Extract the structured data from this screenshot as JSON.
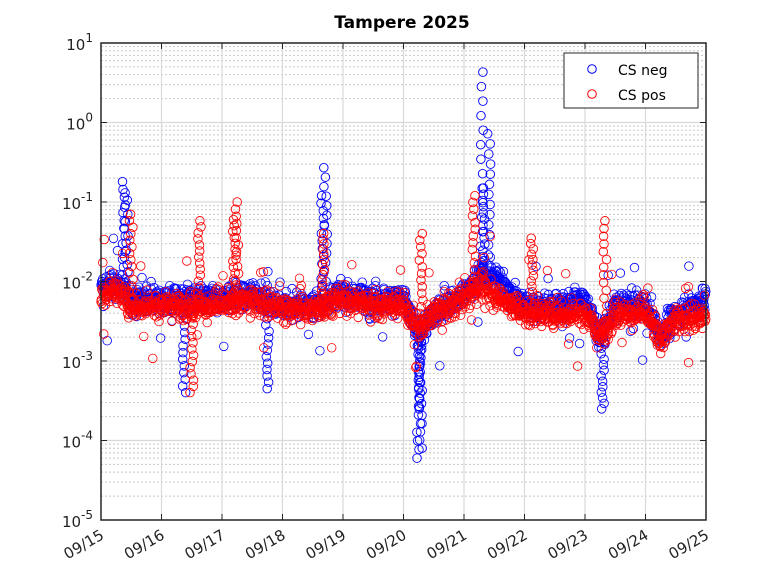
{
  "chart_data": {
    "type": "scatter",
    "title": "Tampere 2025",
    "xlabel": "",
    "ylabel": "",
    "y_scale": "log",
    "ylim": [
      1e-05,
      10
    ],
    "y_ticks": [
      {
        "value": 1e-05,
        "base": "10",
        "exp": "-5"
      },
      {
        "value": 0.0001,
        "base": "10",
        "exp": "-4"
      },
      {
        "value": 0.001,
        "base": "10",
        "exp": "-3"
      },
      {
        "value": 0.01,
        "base": "10",
        "exp": "-2"
      },
      {
        "value": 0.1,
        "base": "10",
        "exp": "-1"
      },
      {
        "value": 1,
        "base": "10",
        "exp": "0"
      },
      {
        "value": 10,
        "base": "10",
        "exp": "1"
      }
    ],
    "x_ticks": [
      "09/15",
      "09/16",
      "09/17",
      "09/18",
      "09/19",
      "09/20",
      "09/21",
      "09/22",
      "09/23",
      "09/24",
      "09/25"
    ],
    "xlim": [
      "2025-09-15",
      "2025-09-25"
    ],
    "grid": true,
    "minor_grid": true,
    "legend_position": "top-right",
    "marker": "open-circle",
    "series": [
      {
        "name": "CS neg",
        "color": "#0000ff",
        "baseline_x": [
          "2025-09-15 00:00",
          "2025-09-15 06:00",
          "2025-09-15 12:00",
          "2025-09-16 00:00",
          "2025-09-16 12:00",
          "2025-09-17 00:00",
          "2025-09-17 12:00",
          "2025-09-18 00:00",
          "2025-09-18 12:00",
          "2025-09-19 00:00",
          "2025-09-19 12:00",
          "2025-09-20 00:00",
          "2025-09-20 06:00",
          "2025-09-20 12:00",
          "2025-09-21 00:00",
          "2025-09-21 06:00",
          "2025-09-21 12:00",
          "2025-09-22 00:00",
          "2025-09-22 12:00",
          "2025-09-23 00:00",
          "2025-09-23 06:00",
          "2025-09-23 12:00",
          "2025-09-24 00:00",
          "2025-09-24 06:00",
          "2025-09-24 12:00",
          "2025-09-25 00:00"
        ],
        "baseline_y": [
          0.008,
          0.01,
          0.006,
          0.006,
          0.006,
          0.006,
          0.007,
          0.005,
          0.005,
          0.007,
          0.006,
          0.006,
          0.002,
          0.004,
          0.007,
          0.012,
          0.012,
          0.005,
          0.005,
          0.006,
          0.002,
          0.005,
          0.005,
          0.002,
          0.004,
          0.006
        ],
        "peaks": [
          {
            "x": "2025-09-15 09:00",
            "y": 0.18
          },
          {
            "x": "2025-09-15 10:00",
            "y": 0.13
          },
          {
            "x": "2025-09-18 17:00",
            "y": 0.27
          },
          {
            "x": "2025-09-18 16:00",
            "y": 0.12
          },
          {
            "x": "2025-09-20 06:00",
            "y": 6e-05
          },
          {
            "x": "2025-09-20 07:00",
            "y": 8e-05
          },
          {
            "x": "2025-09-20 06:30",
            "y": 0.00025
          },
          {
            "x": "2025-09-21 07:00",
            "y": 4.3
          },
          {
            "x": "2025-09-21 10:00",
            "y": 0.72
          },
          {
            "x": "2025-09-21 07:30",
            "y": 0.15
          },
          {
            "x": "2025-09-23 07:00",
            "y": 0.00025
          },
          {
            "x": "2025-09-17 18:00",
            "y": 0.00045
          },
          {
            "x": "2025-09-16 09:00",
            "y": 0.0004
          }
        ]
      },
      {
        "name": "CS pos",
        "color": "#ff0000",
        "baseline_x": [
          "2025-09-15 00:00",
          "2025-09-15 06:00",
          "2025-09-15 12:00",
          "2025-09-16 00:00",
          "2025-09-16 12:00",
          "2025-09-17 00:00",
          "2025-09-17 12:00",
          "2025-09-18 00:00",
          "2025-09-18 12:00",
          "2025-09-19 00:00",
          "2025-09-19 12:00",
          "2025-09-20 00:00",
          "2025-09-20 06:00",
          "2025-09-20 12:00",
          "2025-09-21 00:00",
          "2025-09-21 06:00",
          "2025-09-21 12:00",
          "2025-09-22 00:00",
          "2025-09-22 12:00",
          "2025-09-23 00:00",
          "2025-09-23 06:00",
          "2025-09-23 12:00",
          "2025-09-24 00:00",
          "2025-09-24 06:00",
          "2025-09-24 12:00",
          "2025-09-25 00:00"
        ],
        "baseline_y": [
          0.007,
          0.008,
          0.005,
          0.005,
          0.005,
          0.005,
          0.006,
          0.0045,
          0.0045,
          0.006,
          0.005,
          0.005,
          0.0025,
          0.004,
          0.006,
          0.009,
          0.007,
          0.004,
          0.004,
          0.004,
          0.002,
          0.004,
          0.004,
          0.0018,
          0.0035,
          0.0035
        ],
        "peaks": [
          {
            "x": "2025-09-15 12:00",
            "y": 0.07
          },
          {
            "x": "2025-09-16 12:00",
            "y": 0.0004
          },
          {
            "x": "2025-09-17 06:00",
            "y": 0.1
          },
          {
            "x": "2025-09-17 05:00",
            "y": 0.06
          },
          {
            "x": "2025-09-16 15:00",
            "y": 0.058
          },
          {
            "x": "2025-09-18 16:00",
            "y": 0.04
          },
          {
            "x": "2025-09-20 07:00",
            "y": 0.04
          },
          {
            "x": "2025-09-21 04:00",
            "y": 0.12
          },
          {
            "x": "2025-09-22 03:00",
            "y": 0.035
          },
          {
            "x": "2025-09-23 08:00",
            "y": 0.058
          }
        ]
      }
    ]
  }
}
